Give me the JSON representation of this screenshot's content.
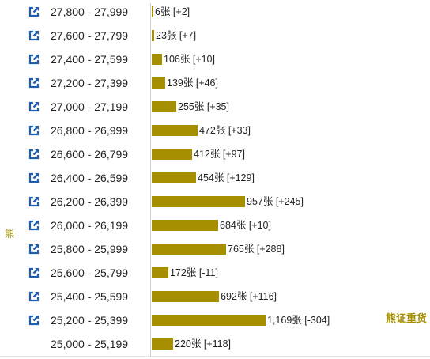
{
  "colors": {
    "bar": "#a68f00",
    "accent": "#a68f00",
    "icon": "#1a5fb4"
  },
  "side_label": "熊",
  "right_label": "熊证重货",
  "chart_data": {
    "type": "bar",
    "orientation": "horizontal",
    "categories": [
      "27,800 - 27,999",
      "27,600 - 27,799",
      "27,400 - 27,599",
      "27,200 - 27,399",
      "27,000 - 27,199",
      "26,800 - 26,999",
      "26,600 - 26,799",
      "26,400 - 26,599",
      "26,200 - 26,399",
      "26,000 - 26,199",
      "25,800 - 25,999",
      "25,600 - 25,799",
      "25,400 - 25,599",
      "25,200 - 25,399",
      "25,000 - 25,199"
    ],
    "values": [
      6,
      23,
      106,
      139,
      255,
      472,
      412,
      454,
      957,
      684,
      765,
      172,
      692,
      1169,
      220
    ],
    "labels": [
      "6张 [+2]",
      "23张 [+7]",
      "106张 [+10]",
      "139张 [+46]",
      "255张 [+35]",
      "472张 [+33]",
      "412张 [+97]",
      "454张 [+129]",
      "957张 [+245]",
      "684张 [+10]",
      "765张 [+288]",
      "172张 [-11]",
      "692张 [+116]",
      "1,169张 [-304]",
      "220张 [+118]"
    ],
    "has_link_icon": [
      true,
      true,
      true,
      true,
      true,
      true,
      true,
      true,
      true,
      true,
      true,
      true,
      true,
      true,
      false
    ],
    "xlim": [
      0,
      1169
    ]
  }
}
